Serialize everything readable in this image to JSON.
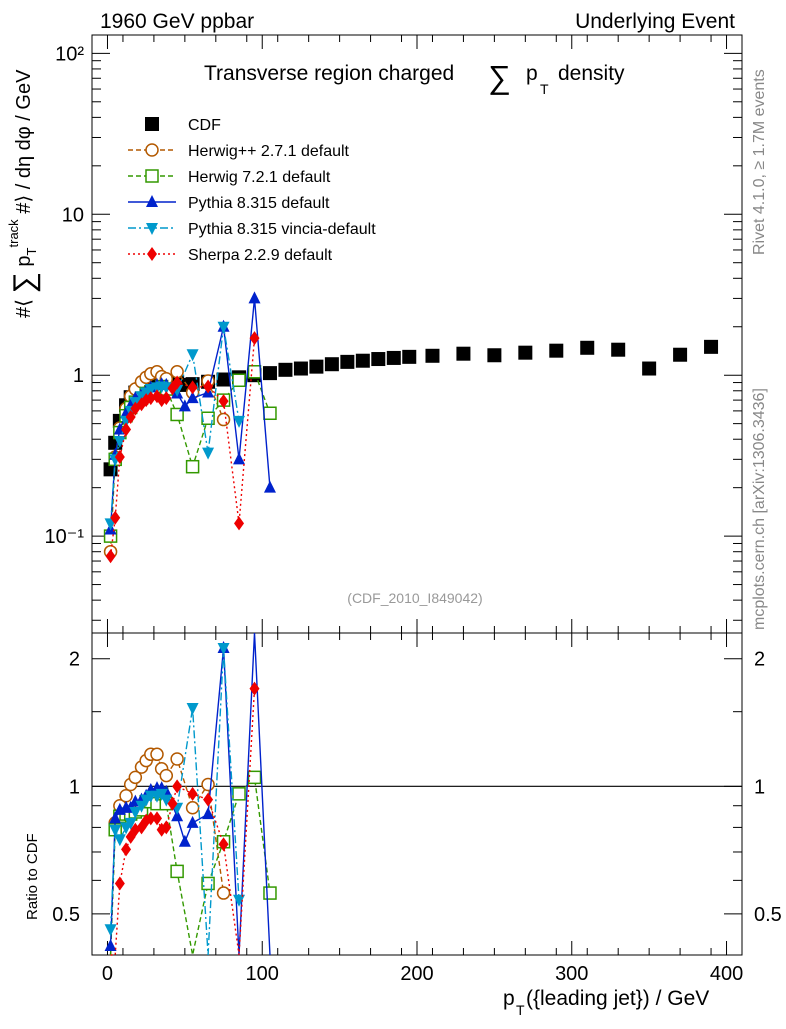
{
  "header": {
    "left": "1960 GeV ppbar",
    "right": "Underlying Event",
    "title_pre": "Transverse region charged",
    "title_sum": "∑",
    "title_p": "p",
    "title_sub": "T",
    "title_post": "density",
    "rivet": "Rivet 4.1.0, ≥ 1.7M events",
    "mcplots": "mcplots.cern.ch [arXiv:1306.3436]",
    "watermark": "(CDF_2010_I849042)"
  },
  "axes": {
    "ylabel_main": "#⟨ ∑ p_T^track #⟩ / dη dφ / GeV",
    "ylabel_ratio": "Ratio to CDF",
    "xlabel": "p_T({leading jet}) / GeV",
    "xlabel_p": "p",
    "xlabel_sub": "T",
    "xlabel_rest": "({leading jet}) / GeV"
  },
  "chart_data": {
    "type": "scatter",
    "title": "Transverse region charged ∑ p_T density",
    "xlabel": "p_T({leading jet}) / GeV",
    "ylabel": "#⟨ ∑ p_T^track #⟩ / dη dφ / GeV",
    "xlim": [
      -10,
      410
    ],
    "ylim": [
      0.025,
      130
    ],
    "yscale": "log",
    "ratio_ylim": [
      0.4,
      2.3
    ],
    "x_ticks": [
      0,
      100,
      200,
      300,
      400
    ],
    "x_tick_labels": [
      "0",
      "100",
      "200",
      "300",
      "400"
    ],
    "y_ticks": [
      0.1,
      1,
      10,
      100
    ],
    "y_tick_labels": [
      "10⁻¹",
      "1",
      "10",
      "10²"
    ],
    "ratio_ticks": [
      0.5,
      1,
      2
    ],
    "ratio_tick_labels": [
      "0.5",
      "1",
      "2"
    ],
    "legend_position": "top-left",
    "series": [
      {
        "name": "CDF",
        "color": "#000000",
        "marker": "square-filled",
        "line": "none",
        "x": [
          2,
          5,
          8,
          12,
          15,
          18,
          22,
          25,
          28,
          32,
          35,
          38,
          42,
          45,
          50,
          55,
          65,
          75,
          85,
          95,
          105,
          115,
          125,
          135,
          145,
          155,
          165,
          175,
          185,
          195,
          210,
          230,
          250,
          270,
          290,
          310,
          330,
          350,
          370,
          390
        ],
        "y": [
          0.26,
          0.38,
          0.52,
          0.65,
          0.73,
          0.78,
          0.82,
          0.84,
          0.86,
          0.88,
          0.89,
          0.9,
          0.91,
          0.9,
          0.87,
          0.88,
          0.91,
          0.94,
          0.97,
          1.0,
          1.03,
          1.08,
          1.1,
          1.13,
          1.17,
          1.21,
          1.23,
          1.26,
          1.28,
          1.3,
          1.32,
          1.36,
          1.33,
          1.38,
          1.42,
          1.48,
          1.44,
          1.1,
          1.34,
          1.5
        ]
      },
      {
        "name": "Herwig++ 2.7.1 default",
        "color": "#b35900",
        "marker": "circle-open",
        "line": "dashed",
        "x": [
          2,
          5,
          8,
          12,
          15,
          18,
          22,
          25,
          28,
          32,
          35,
          38,
          45,
          55,
          65,
          75
        ],
        "y": [
          0.08,
          0.31,
          0.47,
          0.62,
          0.74,
          0.82,
          0.91,
          0.97,
          1.02,
          1.05,
          0.98,
          0.95,
          1.05,
          0.78,
          0.92,
          0.53
        ],
        "ratio": [
          0.31,
          0.82,
          0.9,
          0.95,
          1.01,
          1.05,
          1.11,
          1.15,
          1.19,
          1.19,
          1.1,
          1.06,
          1.16,
          0.89,
          1.01,
          0.56
        ]
      },
      {
        "name": "Herwig 7.2.1 default",
        "color": "#339900",
        "marker": "square-open",
        "line": "dashed",
        "x": [
          2,
          5,
          8,
          12,
          15,
          18,
          22,
          25,
          28,
          32,
          35,
          38,
          45,
          55,
          65,
          75,
          85,
          95,
          105
        ],
        "y": [
          0.1,
          0.3,
          0.44,
          0.56,
          0.63,
          0.68,
          0.72,
          0.77,
          0.79,
          0.8,
          0.85,
          0.82,
          0.57,
          0.27,
          0.54,
          0.7,
          0.93,
          1.05,
          0.58
        ],
        "ratio": [
          0.38,
          0.79,
          0.85,
          0.86,
          0.86,
          0.87,
          0.88,
          0.92,
          0.92,
          0.91,
          0.96,
          0.91,
          0.63,
          0.31,
          0.59,
          0.74,
          0.96,
          1.05,
          0.56
        ]
      },
      {
        "name": "Pythia 8.315 default",
        "color": "#0022cc",
        "marker": "triangle-up",
        "line": "solid",
        "x": [
          2,
          5,
          8,
          12,
          15,
          18,
          22,
          25,
          28,
          32,
          35,
          38,
          45,
          50,
          55,
          65,
          75,
          85,
          95,
          105
        ],
        "y": [
          0.11,
          0.32,
          0.46,
          0.58,
          0.65,
          0.72,
          0.76,
          0.8,
          0.84,
          0.87,
          0.88,
          0.87,
          0.77,
          0.64,
          0.72,
          0.78,
          2.0,
          0.3,
          3.0,
          0.2
        ],
        "ratio": [
          0.42,
          0.84,
          0.88,
          0.89,
          0.89,
          0.92,
          0.93,
          0.95,
          0.98,
          0.99,
          0.99,
          0.97,
          0.85,
          0.74,
          0.82,
          0.86,
          2.12,
          0.31,
          3.0,
          0.2
        ]
      },
      {
        "name": "Pythia 8.315 vincia-default",
        "color": "#0099cc",
        "marker": "triangle-down",
        "line": "dashdot",
        "x": [
          2,
          5,
          8,
          12,
          15,
          18,
          22,
          25,
          28,
          32,
          35,
          38,
          45,
          55,
          65,
          75,
          85
        ],
        "y": [
          0.12,
          0.3,
          0.39,
          0.52,
          0.6,
          0.68,
          0.74,
          0.78,
          0.82,
          0.84,
          0.85,
          0.84,
          0.81,
          1.35,
          0.33,
          2.0,
          0.52
        ],
        "ratio": [
          0.46,
          0.79,
          0.75,
          0.8,
          0.82,
          0.87,
          0.9,
          0.93,
          0.95,
          0.95,
          0.96,
          0.93,
          0.89,
          1.53,
          0.36,
          2.12,
          0.54
        ]
      },
      {
        "name": "Sherpa 2.2.9 default",
        "color": "#ee0000",
        "marker": "diamond",
        "line": "dotted",
        "x": [
          2,
          5,
          8,
          12,
          15,
          18,
          22,
          25,
          28,
          32,
          35,
          38,
          42,
          45,
          55,
          65,
          75,
          85,
          95
        ],
        "y": [
          0.075,
          0.13,
          0.31,
          0.46,
          0.55,
          0.62,
          0.66,
          0.7,
          0.72,
          0.74,
          0.7,
          0.72,
          0.83,
          0.9,
          0.84,
          0.85,
          0.69,
          0.12,
          1.7
        ],
        "ratio": [
          0.29,
          0.35,
          0.59,
          0.71,
          0.76,
          0.79,
          0.8,
          0.83,
          0.84,
          0.84,
          0.79,
          0.8,
          0.91,
          1.0,
          0.96,
          0.93,
          0.73,
          0.12,
          1.7
        ]
      }
    ]
  }
}
